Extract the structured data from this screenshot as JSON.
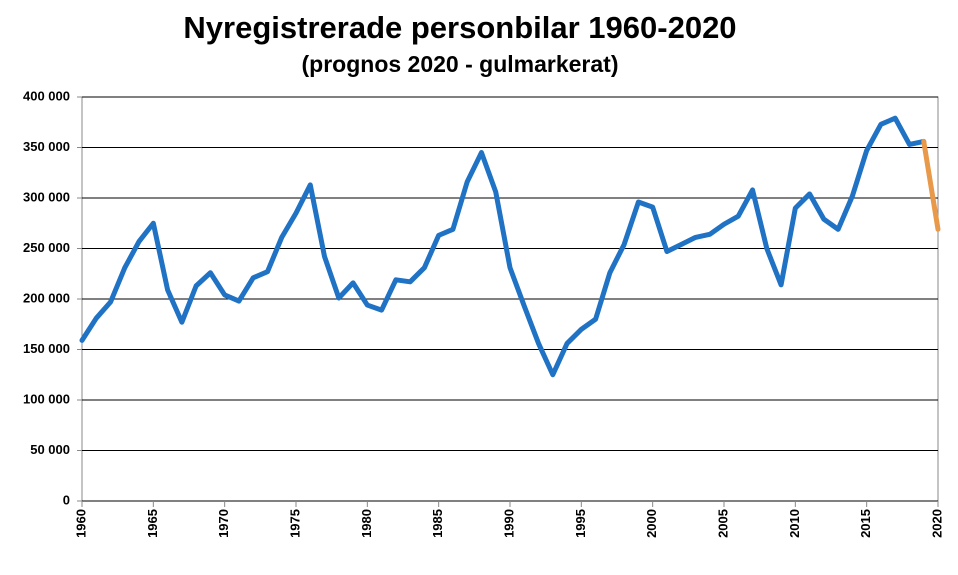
{
  "chart_data": {
    "type": "line",
    "title": "Nyregistrerade personbilar 1960-2020",
    "subtitle": "(prognos 2020 - gulmarkerat)",
    "x": [
      1960,
      1961,
      1962,
      1963,
      1964,
      1965,
      1966,
      1967,
      1968,
      1969,
      1970,
      1971,
      1972,
      1973,
      1974,
      1975,
      1976,
      1977,
      1978,
      1979,
      1980,
      1981,
      1982,
      1983,
      1984,
      1985,
      1986,
      1987,
      1988,
      1989,
      1990,
      1991,
      1992,
      1993,
      1994,
      1995,
      1996,
      1997,
      1998,
      1999,
      2000,
      2001,
      2002,
      2003,
      2004,
      2005,
      2006,
      2007,
      2008,
      2009,
      2010,
      2011,
      2012,
      2013,
      2014,
      2015,
      2016,
      2017,
      2018,
      2019,
      2020
    ],
    "series": [
      {
        "color": "#1f72c4",
        "values": [
          159000,
          181000,
          197000,
          231000,
          257000,
          275000,
          209000,
          177000,
          213000,
          226000,
          204000,
          198000,
          221000,
          227000,
          261000,
          285000,
          313000,
          242000,
          201000,
          216000,
          194000,
          189000,
          219000,
          217000,
          231000,
          263000,
          269000,
          316000,
          345000,
          306000,
          231000,
          193000,
          156000,
          125000,
          156000,
          170000,
          180000,
          226000,
          254000,
          296000,
          291000,
          247000,
          254000,
          261000,
          264000,
          274000,
          282000,
          308000,
          250000,
          214000,
          290000,
          304000,
          279000,
          269000,
          302000,
          347000,
          373000,
          379000,
          353000,
          356000,
          null
        ]
      },
      {
        "color": "#e8994a",
        "values": [
          null,
          null,
          null,
          null,
          null,
          null,
          null,
          null,
          null,
          null,
          null,
          null,
          null,
          null,
          null,
          null,
          null,
          null,
          null,
          null,
          null,
          null,
          null,
          null,
          null,
          null,
          null,
          null,
          null,
          null,
          null,
          null,
          null,
          null,
          null,
          null,
          null,
          null,
          null,
          null,
          null,
          null,
          null,
          null,
          null,
          null,
          null,
          null,
          null,
          null,
          null,
          null,
          null,
          null,
          null,
          null,
          null,
          null,
          null,
          356000,
          269000
        ]
      }
    ],
    "xlim": [
      1960,
      2020
    ],
    "xticks": [
      1960,
      1965,
      1970,
      1975,
      1980,
      1985,
      1990,
      1995,
      2000,
      2005,
      2010,
      2015,
      2020
    ],
    "ylim": [
      0,
      400000
    ],
    "yticks": [
      0,
      {
        "value": 50000,
        "label": "50 000"
      },
      {
        "value": 100000,
        "label": "100 000"
      },
      {
        "value": 150000,
        "label": "150 000"
      },
      {
        "value": 200000,
        "label": "200 000"
      },
      {
        "value": 250000,
        "label": "250 000"
      },
      {
        "value": 300000,
        "label": "300 000"
      },
      {
        "value": 350000,
        "label": "350 000"
      },
      {
        "value": 400000,
        "label": "400 000"
      }
    ],
    "grid": true
  }
}
